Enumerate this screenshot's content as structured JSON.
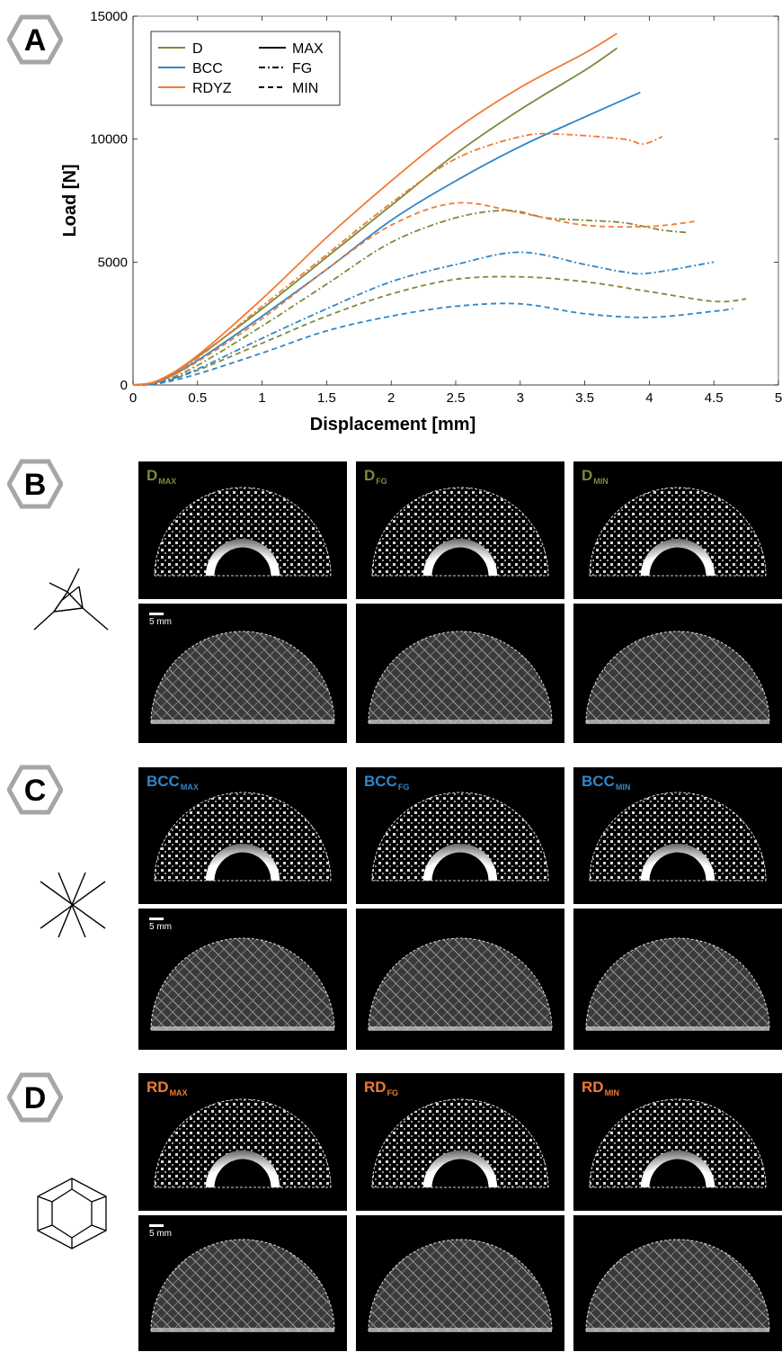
{
  "panels": {
    "a": "A",
    "b": "B",
    "c": "C",
    "d": "D"
  },
  "colors": {
    "D": "#7d8a3a",
    "BCC": "#2f86c9",
    "RDYZ": "#f07a34"
  },
  "legend": {
    "series": [
      "D",
      "BCC",
      "RDYZ"
    ],
    "styles": [
      "MAX",
      "FG",
      "MIN"
    ]
  },
  "scale_label": "5 mm",
  "tiles": {
    "B": {
      "label": "D",
      "subs": [
        "MAX",
        "FG",
        "MIN"
      ]
    },
    "C": {
      "label": "BCC",
      "subs": [
        "MAX",
        "FG",
        "MIN"
      ]
    },
    "D": {
      "label": "RD",
      "subs": [
        "MAX",
        "FG",
        "MIN"
      ]
    }
  },
  "chart_data": {
    "type": "line",
    "title": "",
    "xlabel": "Displacement [mm]",
    "ylabel": "Load [N]",
    "xlim": [
      0,
      5
    ],
    "ylim": [
      0,
      15000
    ],
    "xticks": [
      "0",
      "0.5",
      "1",
      "1.5",
      "2",
      "2.5",
      "3",
      "3.5",
      "4",
      "4.5",
      "5"
    ],
    "yticks": [
      "0",
      "5000",
      "10000",
      "15000"
    ],
    "legend_position": "top-left",
    "grid": false,
    "series": [
      {
        "name": "D MAX",
        "lattice": "D",
        "style": "MAX",
        "x": [
          0,
          0.2,
          0.5,
          1.0,
          1.5,
          2.0,
          2.5,
          3.0,
          3.5,
          3.75
        ],
        "y": [
          0,
          150,
          1150,
          3100,
          5200,
          7300,
          9400,
          11200,
          12800,
          13700
        ]
      },
      {
        "name": "D FG",
        "lattice": "D",
        "style": "FG",
        "x": [
          0,
          0.2,
          0.5,
          1.0,
          1.5,
          2.0,
          2.5,
          2.9,
          3.2,
          3.5,
          3.8,
          4.1,
          4.3
        ],
        "y": [
          0,
          100,
          800,
          2400,
          4100,
          5800,
          6800,
          7100,
          6800,
          6700,
          6600,
          6300,
          6200
        ]
      },
      {
        "name": "D MIN",
        "lattice": "D",
        "style": "MIN",
        "x": [
          0,
          0.2,
          0.5,
          1.0,
          1.5,
          2.0,
          2.5,
          3.0,
          3.5,
          4.0,
          4.5,
          4.75
        ],
        "y": [
          0,
          80,
          600,
          1700,
          2800,
          3700,
          4300,
          4400,
          4200,
          3800,
          3400,
          3500
        ]
      },
      {
        "name": "BCC MAX",
        "lattice": "BCC",
        "style": "MAX",
        "x": [
          0,
          0.2,
          0.5,
          1.0,
          1.5,
          2.0,
          2.5,
          3.0,
          3.5,
          3.93
        ],
        "y": [
          0,
          140,
          1000,
          2800,
          4700,
          6700,
          8300,
          9700,
          10900,
          11900
        ]
      },
      {
        "name": "BCC FG",
        "lattice": "BCC",
        "style": "FG",
        "x": [
          0,
          0.2,
          0.5,
          1.0,
          1.5,
          2.0,
          2.5,
          3.0,
          3.5,
          3.8,
          4.0,
          4.5
        ],
        "y": [
          0,
          90,
          650,
          1900,
          3100,
          4200,
          4900,
          5400,
          4900,
          4600,
          4550,
          5000
        ]
      },
      {
        "name": "BCC MIN",
        "lattice": "BCC",
        "style": "MIN",
        "x": [
          0,
          0.2,
          0.5,
          1.0,
          1.5,
          2.0,
          2.5,
          3.0,
          3.5,
          4.0,
          4.5,
          4.65
        ],
        "y": [
          0,
          60,
          450,
          1300,
          2200,
          2800,
          3200,
          3300,
          2900,
          2750,
          3000,
          3100
        ]
      },
      {
        "name": "RDYZ MAX",
        "lattice": "RDYZ",
        "style": "MAX",
        "x": [
          0,
          0.2,
          0.5,
          1.0,
          1.5,
          2.0,
          2.5,
          3.0,
          3.5,
          3.75
        ],
        "y": [
          0,
          200,
          1200,
          3500,
          6000,
          8300,
          10400,
          12100,
          13500,
          14300
        ]
      },
      {
        "name": "RDYZ FG",
        "lattice": "RDYZ",
        "style": "FG",
        "x": [
          0,
          0.2,
          0.5,
          1.0,
          1.5,
          2.0,
          2.5,
          3.0,
          3.3,
          3.8,
          3.95,
          4.1
        ],
        "y": [
          0,
          180,
          1100,
          3200,
          5300,
          7400,
          9200,
          10100,
          10200,
          10000,
          9800,
          10100
        ]
      },
      {
        "name": "RDYZ MIN",
        "lattice": "RDYZ",
        "style": "MIN",
        "x": [
          0,
          0.2,
          0.5,
          1.0,
          1.5,
          2.0,
          2.5,
          3.0,
          3.5,
          4.0,
          4.35
        ],
        "y": [
          0,
          150,
          950,
          2700,
          4700,
          6500,
          7400,
          7000,
          6500,
          6450,
          6650
        ]
      }
    ]
  }
}
